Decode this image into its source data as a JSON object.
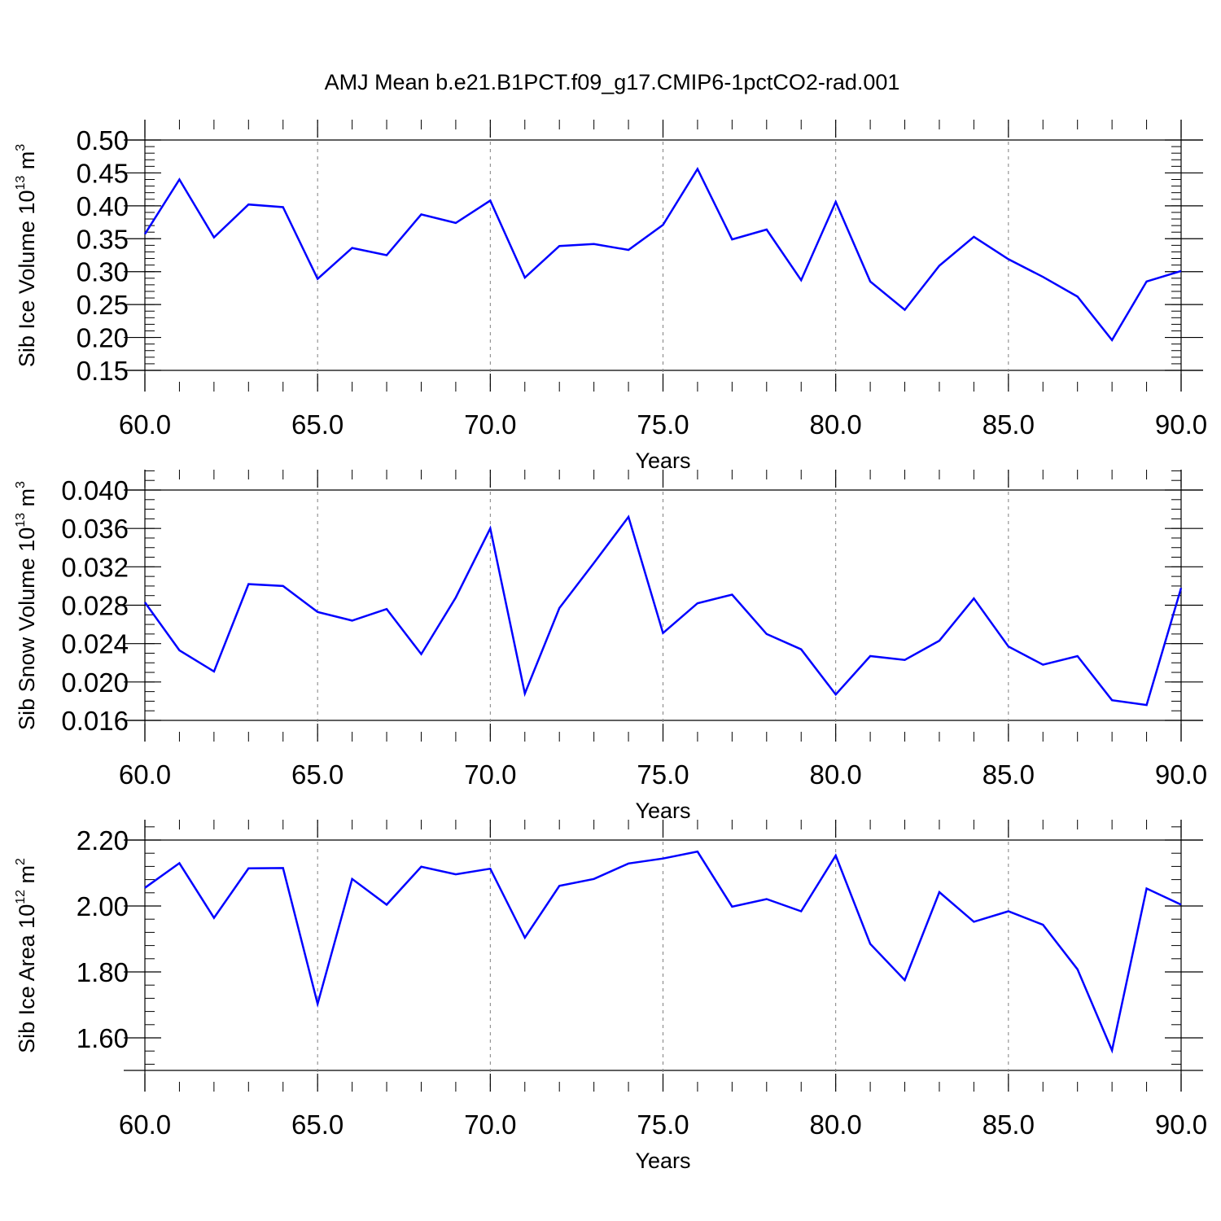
{
  "title": "AMJ Mean b.e21.B1PCT.f09_g17.CMIP6-1pctCO2-rad.001",
  "colors": {
    "line": "#0000ff",
    "axis": "#000000",
    "grid": "#808080"
  },
  "chart_data": [
    {
      "type": "line",
      "ylabel": {
        "text": "Sib Ice Volume 10",
        "exp": "13",
        "unit": " m",
        "unit_exp": "3"
      },
      "xlabel": "Years",
      "xlim": [
        60,
        90
      ],
      "ylim": [
        0.15,
        0.5
      ],
      "yticks": [
        "0.15",
        "0.20",
        "0.25",
        "0.30",
        "0.35",
        "0.40",
        "0.45",
        "0.50"
      ],
      "xticks": [
        "60.0",
        "65.0",
        "70.0",
        "75.0",
        "80.0",
        "85.0",
        "90.0"
      ],
      "grid": "vertical dashed at major x ticks",
      "x": [
        60,
        61,
        62,
        63,
        64,
        65,
        66,
        67,
        68,
        69,
        70,
        71,
        72,
        73,
        74,
        75,
        76,
        77,
        78,
        79,
        80,
        81,
        82,
        83,
        84,
        85,
        86,
        87,
        88,
        89,
        90
      ],
      "values": [
        0.357,
        0.44,
        0.352,
        0.402,
        0.398,
        0.289,
        0.336,
        0.325,
        0.387,
        0.374,
        0.408,
        0.291,
        0.339,
        0.342,
        0.333,
        0.371,
        0.456,
        0.349,
        0.364,
        0.287,
        0.406,
        0.285,
        0.242,
        0.309,
        0.353,
        0.319,
        0.292,
        0.262,
        0.196,
        0.285,
        0.301
      ]
    },
    {
      "type": "line",
      "ylabel": {
        "text": "Sib Snow Volume 10",
        "exp": "13",
        "unit": " m",
        "unit_exp": "3"
      },
      "xlabel": "Years",
      "xlim": [
        60,
        90
      ],
      "ylim": [
        0.016,
        0.042
      ],
      "yticks": [
        "0.016",
        "0.020",
        "0.024",
        "0.028",
        "0.032",
        "0.036",
        "0.040"
      ],
      "xticks": [
        "60.0",
        "65.0",
        "70.0",
        "75.0",
        "80.0",
        "85.0",
        "90.0"
      ],
      "grid": "vertical dashed at major x ticks",
      "x": [
        60,
        61,
        62,
        63,
        64,
        65,
        66,
        67,
        68,
        69,
        70,
        71,
        72,
        73,
        74,
        75,
        76,
        77,
        78,
        79,
        80,
        81,
        82,
        83,
        84,
        85,
        86,
        87,
        88,
        89,
        90
      ],
      "values": [
        0.0283,
        0.0233,
        0.0211,
        0.0302,
        0.03,
        0.0273,
        0.0264,
        0.0276,
        0.0229,
        0.0288,
        0.036,
        0.0188,
        0.0277,
        0.0324,
        0.0372,
        0.0251,
        0.0282,
        0.0291,
        0.025,
        0.0234,
        0.0187,
        0.0227,
        0.0223,
        0.0243,
        0.0287,
        0.0237,
        0.0218,
        0.0227,
        0.0181,
        0.0176,
        0.0298
      ]
    },
    {
      "type": "line",
      "ylabel": {
        "text": "Sib Ice Area 10",
        "exp": "12",
        "unit": " m",
        "unit_exp": "2"
      },
      "xlabel": "Years",
      "xlim": [
        60,
        90
      ],
      "ylim": [
        1.5,
        2.26
      ],
      "yticks": [
        "1.60",
        "1.80",
        "2.00",
        "2.20"
      ],
      "xticks": [
        "60.0",
        "65.0",
        "70.0",
        "75.0",
        "80.0",
        "85.0",
        "90.0"
      ],
      "grid": "vertical dashed at major x ticks",
      "x": [
        60,
        61,
        62,
        63,
        64,
        65,
        66,
        67,
        68,
        69,
        70,
        71,
        72,
        73,
        74,
        75,
        76,
        77,
        78,
        79,
        80,
        81,
        82,
        83,
        84,
        85,
        86,
        87,
        88,
        89,
        90
      ],
      "values": [
        2.055,
        2.13,
        1.964,
        2.114,
        2.115,
        1.703,
        2.082,
        2.004,
        2.119,
        2.096,
        2.113,
        1.904,
        2.061,
        2.082,
        2.129,
        2.144,
        2.165,
        1.998,
        2.021,
        1.984,
        2.153,
        1.885,
        1.775,
        2.042,
        1.952,
        1.984,
        1.943,
        1.808,
        1.562,
        2.053,
        2.004
      ]
    }
  ]
}
